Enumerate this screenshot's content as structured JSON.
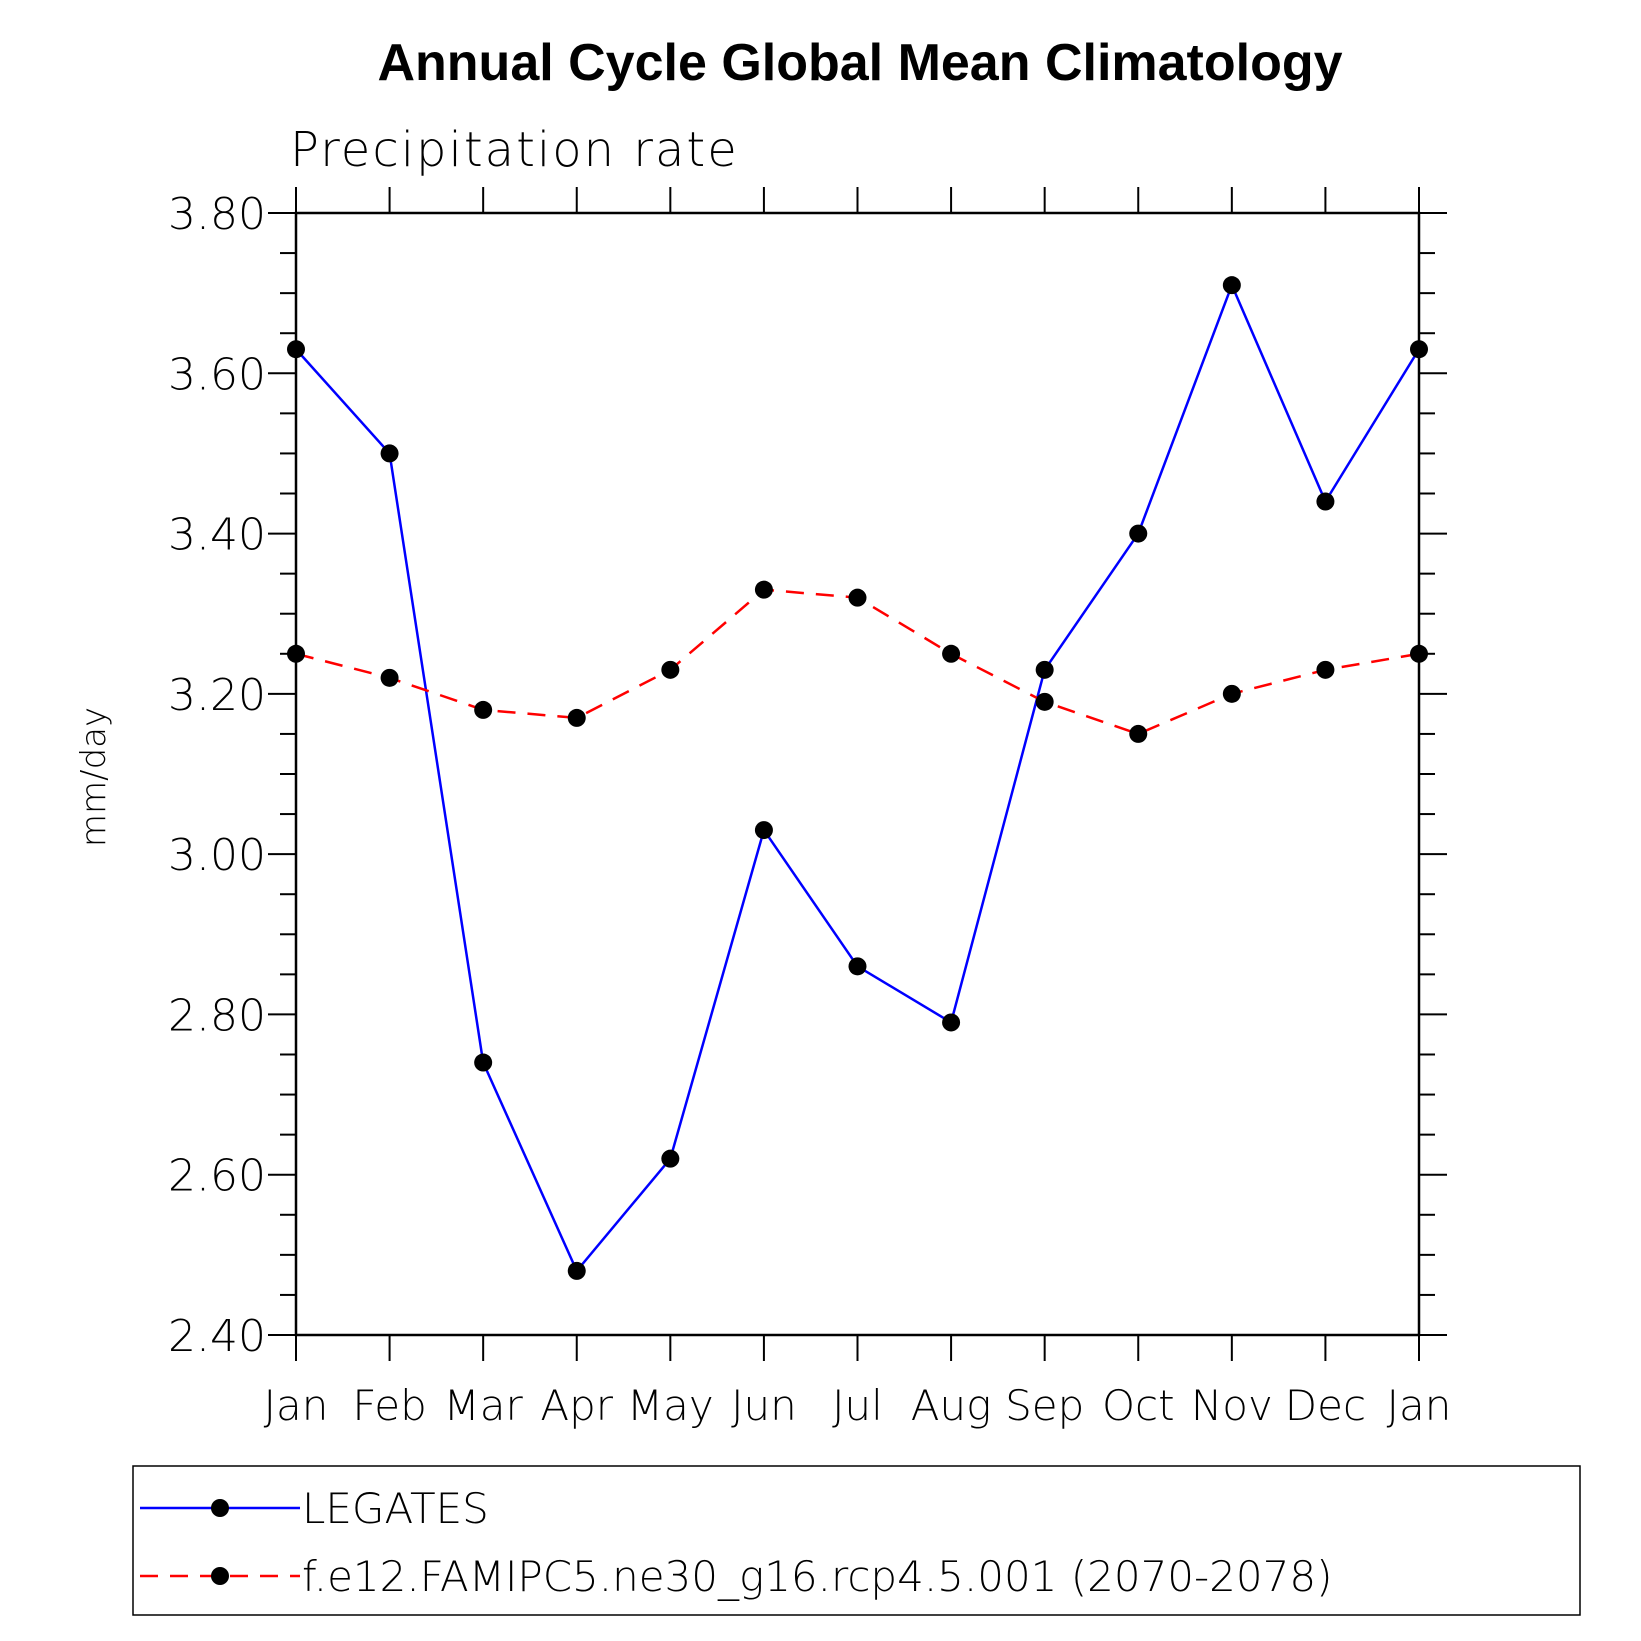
{
  "chart_data": {
    "type": "line",
    "title": "Annual Cycle Global Mean Climatology",
    "subtitle": "Precipitation rate",
    "xlabel": "",
    "ylabel": "mm/day",
    "categories": [
      "Jan",
      "Feb",
      "Mar",
      "Apr",
      "May",
      "Jun",
      "Jul",
      "Aug",
      "Sep",
      "Oct",
      "Nov",
      "Dec",
      "Jan"
    ],
    "yticks": [
      "2.40",
      "2.60",
      "2.80",
      "3.00",
      "3.20",
      "3.40",
      "3.60",
      "3.80"
    ],
    "ylim": [
      2.4,
      3.8
    ],
    "grid": false,
    "legend_position": "bottom",
    "series": [
      {
        "name": "LEGATES",
        "color": "#0000ff",
        "dash": "solid",
        "marker": "filled-circle",
        "values": [
          3.63,
          3.5,
          2.74,
          2.48,
          2.62,
          3.03,
          2.86,
          2.79,
          3.23,
          3.4,
          3.71,
          3.44,
          3.63
        ]
      },
      {
        "name": "f.e12.FAMIPC5.ne30_g16.rcp4.5.001 (2070-2078)",
        "color": "#ff0000",
        "dash": "dashed",
        "marker": "filled-circle",
        "values": [
          3.25,
          3.22,
          3.18,
          3.17,
          3.23,
          3.33,
          3.32,
          3.25,
          3.19,
          3.15,
          3.2,
          3.23,
          3.25
        ]
      }
    ]
  }
}
